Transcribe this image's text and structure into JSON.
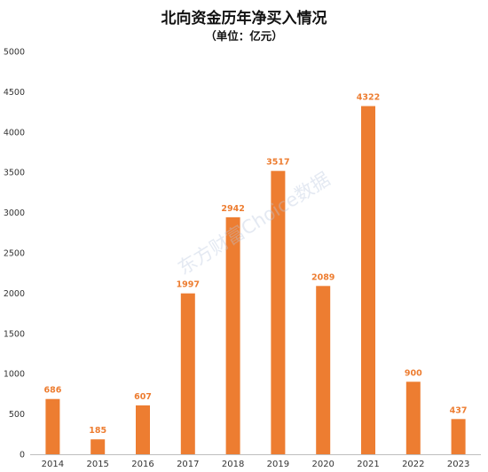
{
  "chart_data": {
    "type": "bar",
    "title": "北向资金历年净买入情况",
    "subtitle": "（单位：亿元）",
    "categories": [
      "2014",
      "2015",
      "2016",
      "2017",
      "2018",
      "2019",
      "2020",
      "2021",
      "2022",
      "2023"
    ],
    "values": [
      686,
      185,
      607,
      1997,
      2942,
      3517,
      2089,
      4322,
      900,
      437
    ],
    "ylim": [
      0,
      5000
    ],
    "yticks": [
      0,
      500,
      1000,
      1500,
      2000,
      2500,
      3000,
      3500,
      4000,
      4500,
      5000
    ],
    "xlabel": "",
    "ylabel": "",
    "grid": false,
    "data_labels": true,
    "bar_color": "#ED7D31",
    "axis_color": "#bfbfbf"
  },
  "watermark": "东方财富Choice数据"
}
